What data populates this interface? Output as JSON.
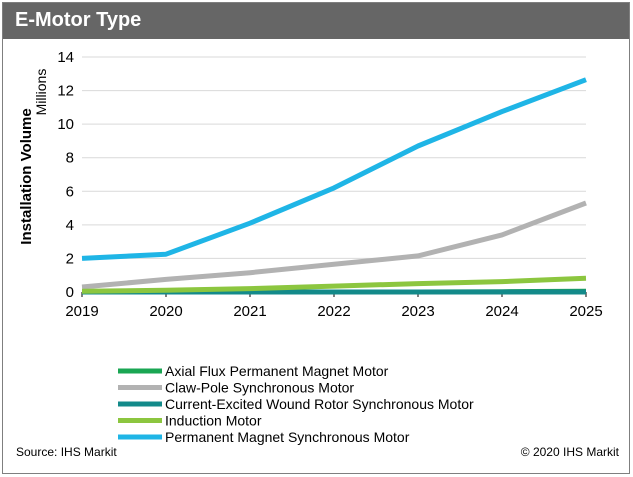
{
  "header": {
    "title": "E-Motor Type"
  },
  "footer": {
    "source": "Source: IHS Markit",
    "copyright": "© 2020 IHS Markit"
  },
  "chart_data": {
    "type": "line",
    "ylabel": "Installation Volume",
    "yunit": "Millions",
    "ylim": [
      0,
      14
    ],
    "yticks": [
      0,
      2,
      4,
      6,
      8,
      10,
      12,
      14
    ],
    "x": [
      "2019",
      "2020",
      "2021",
      "2022",
      "2023",
      "2024",
      "2025"
    ],
    "grid": "horizontal",
    "legend": "bottom",
    "series": [
      {
        "name": "Axial Flux Permanent Magnet Motor",
        "color": "#1aa653",
        "values": [
          0,
          0,
          0,
          0,
          0,
          0.02,
          0.05
        ]
      },
      {
        "name": "Claw-Pole Synchronous Motor",
        "color": "#b2b2b2",
        "values": [
          0.3,
          0.75,
          1.15,
          1.65,
          2.15,
          3.4,
          5.3
        ]
      },
      {
        "name": "Current-Excited Wound Rotor Synchronous Motor",
        "color": "#138a8a",
        "values": [
          0,
          0,
          0,
          0,
          0,
          0,
          0
        ]
      },
      {
        "name": "Induction Motor",
        "color": "#8cc63f",
        "values": [
          0.05,
          0.1,
          0.2,
          0.35,
          0.5,
          0.62,
          0.82
        ]
      },
      {
        "name": "Permanent Magnet Synchronous Motor",
        "color": "#1fb5e6",
        "values": [
          2.0,
          2.25,
          4.1,
          6.2,
          8.7,
          10.75,
          12.65
        ]
      }
    ]
  }
}
